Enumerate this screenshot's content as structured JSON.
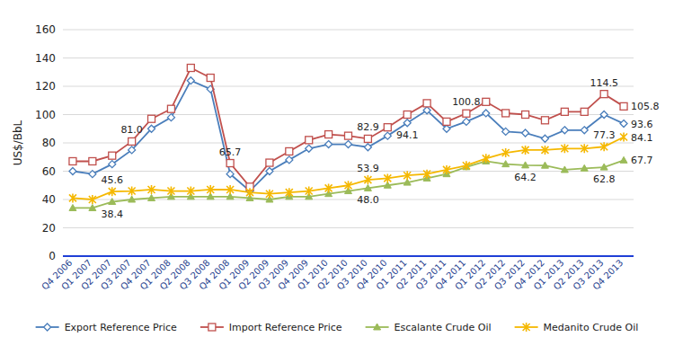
{
  "chart_data": {
    "type": "line",
    "y_label": "US$/BbL",
    "categories": [
      "Q4 2006",
      "Q1 2007",
      "Q2 2007",
      "Q3 2007",
      "Q4 2007",
      "Q1 2008",
      "Q2 2008",
      "Q3 2008",
      "Q4 2008",
      "Q1 2009",
      "Q2 2009",
      "Q3 2009",
      "Q4 2009",
      "Q1 2010",
      "Q2 2010",
      "Q3 2010",
      "Q4 2010",
      "Q1 2011",
      "Q2 2011",
      "Q3 2011",
      "Q4 2011",
      "Q1 2012",
      "Q2 2012",
      "Q3 2012",
      "Q4 2012",
      "Q1 2013",
      "Q2 2013",
      "Q3 2013",
      "Q4 2013"
    ],
    "ylim": [
      0,
      160
    ],
    "yticks": [
      0,
      20,
      40,
      60,
      80,
      100,
      120,
      140,
      160
    ],
    "grid": true,
    "legend": "bottom",
    "data_labels": true,
    "series": [
      {
        "name": "Export Reference Price",
        "color": "#4a7ebb",
        "marker": "diamond",
        "line_style": "solid",
        "values": [
          60,
          58,
          65,
          75,
          90,
          98,
          124,
          118,
          58,
          46,
          60,
          68,
          76,
          79,
          79,
          77,
          85,
          94.1,
          103,
          90,
          95,
          101,
          88,
          87,
          83,
          89,
          89,
          100,
          93.6
        ],
        "value_labels": [
          null,
          null,
          null,
          null,
          null,
          null,
          null,
          null,
          null,
          null,
          null,
          null,
          null,
          null,
          null,
          null,
          null,
          "94.1",
          null,
          null,
          null,
          null,
          null,
          null,
          null,
          null,
          null,
          null,
          "93.6"
        ]
      },
      {
        "name": "Import Reference Price",
        "color": "#c0504d",
        "marker": "square",
        "line_style": "solid",
        "values": [
          67,
          67,
          71,
          81.0,
          97,
          104,
          133,
          126,
          65.7,
          49,
          66,
          74,
          82,
          86,
          85,
          82.9,
          91,
          100,
          108,
          95,
          100.8,
          109,
          101,
          100,
          96,
          102,
          102,
          114.5,
          105.8
        ],
        "value_labels": [
          null,
          null,
          null,
          "81.0",
          null,
          null,
          null,
          null,
          "65.7",
          null,
          null,
          null,
          null,
          null,
          null,
          "82.9",
          null,
          null,
          null,
          null,
          "100.8",
          null,
          null,
          null,
          null,
          null,
          null,
          "114.5",
          "105.8"
        ]
      },
      {
        "name": "Escalante Crude Oil",
        "color": "#9bbb59",
        "marker": "triangle",
        "line_style": "solid",
        "values": [
          34,
          34,
          38.4,
          40,
          41,
          42,
          42,
          42,
          42,
          41,
          40,
          42,
          42,
          44,
          46,
          48.0,
          50,
          52,
          55,
          58,
          63,
          67,
          65,
          64.2,
          64,
          61,
          62,
          62.8,
          67.7
        ],
        "value_labels": [
          null,
          null,
          "38.4",
          null,
          null,
          null,
          null,
          null,
          null,
          null,
          null,
          null,
          null,
          null,
          null,
          "48.0",
          null,
          null,
          null,
          null,
          null,
          null,
          null,
          "64.2",
          null,
          null,
          null,
          "62.8",
          "67.7"
        ]
      },
      {
        "name": "Medanito Crude Oil",
        "color": "#f5b800",
        "marker": "star",
        "line_style": "solid",
        "values": [
          41,
          40,
          45.6,
          46,
          47,
          46,
          46,
          47,
          47,
          45,
          44,
          45,
          46,
          48,
          50,
          53.9,
          55,
          57,
          58,
          61,
          64,
          69,
          73,
          75,
          75,
          76,
          76,
          77.3,
          84.1
        ],
        "value_labels": [
          null,
          null,
          "45.6",
          null,
          null,
          null,
          null,
          null,
          null,
          null,
          null,
          null,
          null,
          null,
          null,
          "53.9",
          null,
          null,
          null,
          null,
          null,
          null,
          null,
          null,
          null,
          null,
          null,
          "77.3",
          "84.1"
        ]
      }
    ]
  }
}
